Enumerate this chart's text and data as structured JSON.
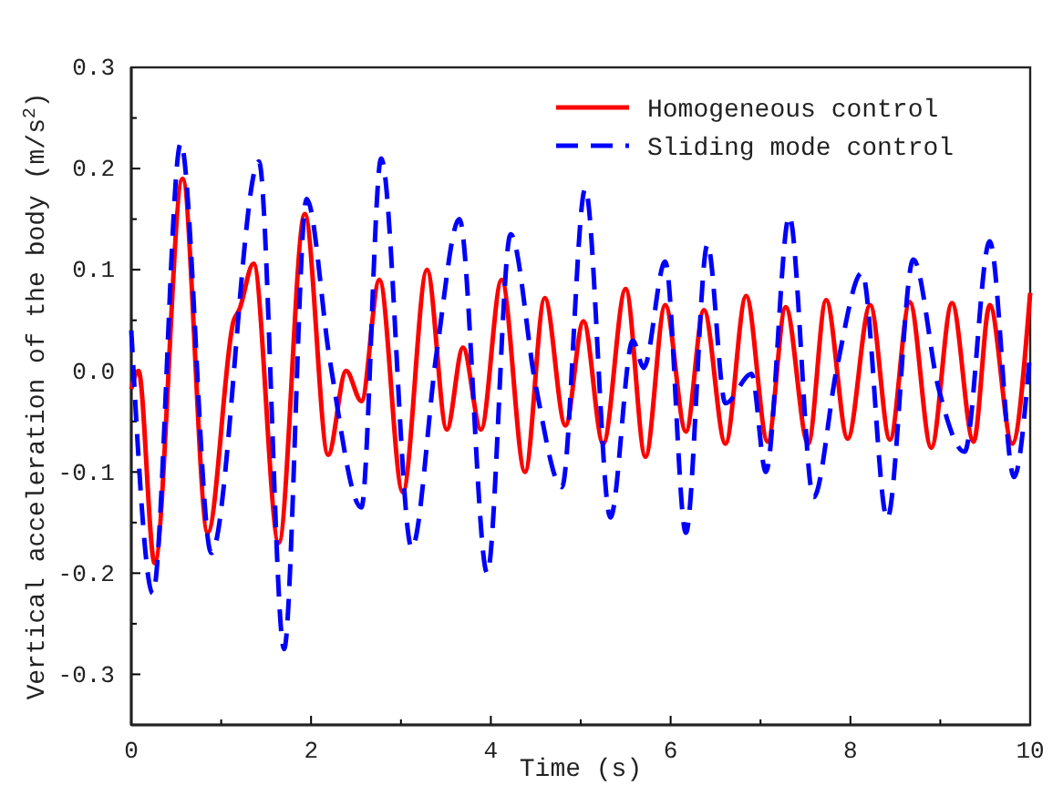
{
  "chart_data": {
    "type": "line",
    "xlabel": "Time (s)",
    "ylabel": "Vertical acceleration of the body (m/s$^{2}$)",
    "xlim": [
      0,
      10
    ],
    "ylim": [
      -0.35,
      0.3
    ],
    "xticks": [
      0,
      {
        "value": 1,
        "label": null
      },
      2,
      {
        "value": 3,
        "label": null
      },
      4,
      {
        "value": 5,
        "label": null
      },
      6,
      {
        "value": 7,
        "label": null
      },
      8,
      {
        "value": 9,
        "label": null
      },
      10
    ],
    "yticks": [
      {
        "value": -0.35,
        "label": null
      },
      -0.3,
      {
        "value": -0.25,
        "label": null
      },
      -0.2,
      {
        "value": -0.15,
        "label": null
      },
      -0.1,
      {
        "value": -0.05,
        "label": null
      },
      {
        "value": 0,
        "label": "0.0"
      },
      {
        "value": 0.05,
        "label": null
      },
      0.1,
      {
        "value": 0.15,
        "label": null
      },
      0.2,
      {
        "value": 0.25,
        "label": null
      },
      0.3
    ],
    "legend": "top right",
    "grid": false,
    "series": [
      {
        "name": "Homogeneous control",
        "color": "#ff0000",
        "line_style": "solid",
        "x": [
          0,
          0.08,
          0.26,
          0.57,
          0.85,
          1.14,
          1.2,
          1.36,
          1.64,
          1.93,
          2.19,
          2.39,
          2.56,
          2.76,
          3.02,
          3.29,
          3.51,
          3.69,
          3.89,
          4.12,
          4.38,
          4.6,
          4.83,
          5.03,
          5.25,
          5.5,
          5.72,
          5.94,
          6.17,
          6.37,
          6.61,
          6.84,
          7.08,
          7.28,
          7.53,
          7.73,
          7.97,
          8.22,
          8.44,
          8.66,
          8.9,
          9.13,
          9.37,
          9.55,
          9.8,
          10
        ],
        "values": [
          -0.018,
          0,
          -0.19,
          0.19,
          -0.16,
          0.05,
          0.06,
          0.106,
          -0.17,
          0.155,
          -0.083,
          0,
          -0.03,
          0.09,
          -0.12,
          0.1,
          -0.058,
          0.023,
          -0.058,
          0.09,
          -0.1,
          0.072,
          -0.054,
          0.049,
          -0.072,
          0.081,
          -0.085,
          0.065,
          -0.06,
          0.06,
          -0.072,
          0.074,
          -0.07,
          0.063,
          -0.072,
          0.07,
          -0.067,
          0.065,
          -0.068,
          0.068,
          -0.076,
          0.067,
          -0.07,
          0.065,
          -0.072,
          0.077
        ]
      },
      {
        "name": "Sliding mode control",
        "color": "#0000ff",
        "line_style": "dashed",
        "x": [
          0,
          0.24,
          0.55,
          0.89,
          1.42,
          1.7,
          1.95,
          2.21,
          2.56,
          2.78,
          3.12,
          3.4,
          3.65,
          3.96,
          4.22,
          4.5,
          4.79,
          5.05,
          5.33,
          5.58,
          5.7,
          5.94,
          6.17,
          6.41,
          6.61,
          6.9,
          7.06,
          7.32,
          7.59,
          7.85,
          8.13,
          8.41,
          8.7,
          8.98,
          9.27,
          9.55,
          9.82,
          10
        ],
        "values": [
          0.04,
          -0.22,
          0.225,
          -0.18,
          0.207,
          -0.275,
          0.17,
          0.01,
          -0.135,
          0.21,
          -0.175,
          0.02,
          0.15,
          -0.2,
          0.135,
          -0.015,
          -0.115,
          0.18,
          -0.145,
          0.03,
          0.003,
          0.108,
          -0.16,
          0.125,
          -0.032,
          -0.003,
          -0.1,
          0.153,
          -0.125,
          0.003,
          0.097,
          -0.146,
          0.11,
          -0.017,
          -0.08,
          0.128,
          -0.105,
          0.02
        ]
      }
    ]
  }
}
